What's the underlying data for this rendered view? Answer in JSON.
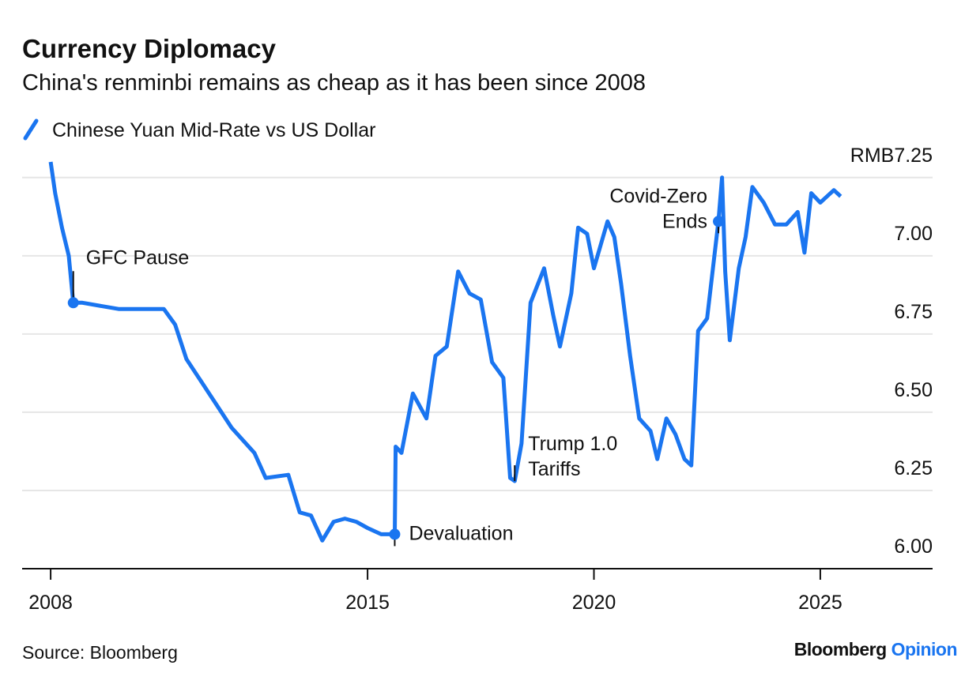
{
  "chart_data": {
    "type": "line",
    "title": "Currency Diplomacy",
    "subtitle": "China's renminbi remains as cheap as it has been since 2008",
    "source": "Source: Bloomberg",
    "brand": [
      "Bloomberg",
      "Opinion"
    ],
    "x": [
      2008.0,
      2008.1,
      2008.25,
      2008.4,
      2008.5,
      2008.7,
      2009.5,
      2010.5,
      2010.75,
      2011.0,
      2011.5,
      2012.0,
      2012.5,
      2012.75,
      2013.25,
      2013.5,
      2013.75,
      2014.0,
      2014.25,
      2014.5,
      2014.75,
      2015.0,
      2015.3,
      2015.6,
      2015.62,
      2015.75,
      2016.0,
      2016.3,
      2016.5,
      2016.75,
      2017.0,
      2017.25,
      2017.5,
      2017.75,
      2018.0,
      2018.15,
      2018.25,
      2018.4,
      2018.6,
      2018.9,
      2019.1,
      2019.25,
      2019.5,
      2019.65,
      2019.85,
      2020.0,
      2020.3,
      2020.45,
      2020.6,
      2020.8,
      2021.0,
      2021.25,
      2021.4,
      2021.6,
      2021.8,
      2022.0,
      2022.15,
      2022.3,
      2022.5,
      2022.75,
      2022.83,
      2022.9,
      2023.0,
      2023.2,
      2023.35,
      2023.5,
      2023.75,
      2024.0,
      2024.25,
      2024.5,
      2024.65,
      2024.8,
      2025.0,
      2025.3,
      2025.45
    ],
    "series": [
      {
        "name": "Chinese Yuan Mid-Rate vs US Dollar",
        "color": "#1a75f0",
        "values": [
          7.3,
          7.2,
          7.09,
          7.0,
          6.85,
          6.85,
          6.83,
          6.83,
          6.78,
          6.67,
          6.56,
          6.45,
          6.37,
          6.29,
          6.3,
          6.18,
          6.17,
          6.09,
          6.15,
          6.16,
          6.15,
          6.13,
          6.11,
          6.11,
          6.39,
          6.37,
          6.56,
          6.48,
          6.68,
          6.71,
          6.95,
          6.88,
          6.86,
          6.66,
          6.61,
          6.29,
          6.28,
          6.4,
          6.85,
          6.96,
          6.81,
          6.71,
          6.88,
          7.09,
          7.07,
          6.96,
          7.11,
          7.06,
          6.91,
          6.68,
          6.48,
          6.44,
          6.35,
          6.48,
          6.43,
          6.35,
          6.33,
          6.76,
          6.8,
          7.11,
          7.25,
          6.95,
          6.73,
          6.96,
          7.06,
          7.22,
          7.17,
          7.1,
          7.1,
          7.14,
          7.01,
          7.2,
          7.17,
          7.21,
          7.19
        ]
      }
    ],
    "annotations": [
      {
        "lines": [
          "GFC Pause"
        ],
        "x": 2008.5,
        "y": 6.85
      },
      {
        "lines": [
          "Devaluation"
        ],
        "x": 2015.6,
        "y": 6.11
      },
      {
        "lines": [
          "Trump 1.0",
          "Tariffs"
        ],
        "x": 2018.25,
        "y": 6.28
      },
      {
        "lines": [
          "Covid-Zero",
          "Ends"
        ],
        "x": 2022.75,
        "y": 7.11
      }
    ],
    "xlim": [
      2007.37,
      2027.48
    ],
    "xticks": [
      2008,
      2015,
      2020,
      2025
    ],
    "ylim": [
      6.0,
      7.3
    ],
    "yticks": [
      {
        "value": 6.0,
        "label": "6.00"
      },
      6.25,
      {
        "value": 6.5,
        "label": "6.50"
      },
      6.75,
      {
        "value": 7.0,
        "label": "7.00"
      },
      {
        "value": 7.25,
        "label": "RMB7.25"
      }
    ],
    "grid": true
  }
}
